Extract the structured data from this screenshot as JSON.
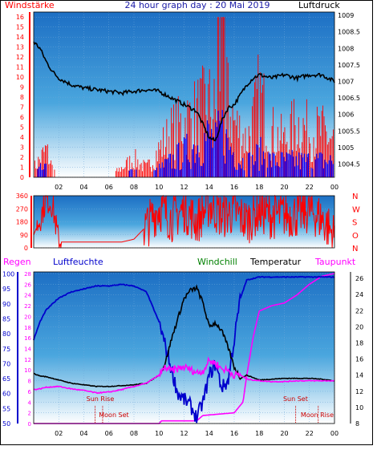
{
  "chart_data": [
    {
      "type": "line",
      "title": "24 hour graph day : 20 Mai 2019",
      "left_label": "Windstärke",
      "right_label": "Luftdruck",
      "x_ticks": [
        "02",
        "04",
        "06",
        "08",
        "10",
        "12",
        "14",
        "16",
        "18",
        "20",
        "22",
        "00"
      ],
      "y_left_ticks": [
        "0",
        "1",
        "2",
        "3",
        "4",
        "5",
        "6",
        "7",
        "8",
        "9",
        "10",
        "11",
        "12",
        "13",
        "14",
        "15",
        "16"
      ],
      "y_right_ticks": [
        "1004.5",
        "1005",
        "1005.5",
        "1006",
        "1006.5",
        "1007",
        "1007.5",
        "1008",
        "1008.5",
        "1009"
      ],
      "ylim_left": [
        0,
        16.5
      ],
      "ylim_right": [
        1004.1,
        1009.1
      ],
      "series": [
        {
          "name": "Luftdruck",
          "axis": "right",
          "color": "#000000",
          "x": [
            0,
            0.5,
            1,
            1.5,
            2,
            3,
            4,
            5,
            6,
            7,
            8,
            9,
            10,
            11,
            12,
            13,
            14,
            14.5,
            15,
            15.5,
            16,
            16.5,
            17,
            17.5,
            18,
            19,
            20,
            21,
            22,
            23,
            24
          ],
          "values": [
            1008.2,
            1008.0,
            1007.6,
            1007.3,
            1007.1,
            1006.9,
            1006.8,
            1006.75,
            1006.7,
            1006.65,
            1006.7,
            1006.75,
            1006.7,
            1006.5,
            1006.3,
            1006.1,
            1005.3,
            1005.2,
            1005.8,
            1006.2,
            1006.3,
            1006.6,
            1006.9,
            1007.1,
            1007.2,
            1007.1,
            1007.2,
            1007.1,
            1007.2,
            1007.2,
            1007.0
          ]
        },
        {
          "name": "Windstärke",
          "axis": "left",
          "color": "#ff0000",
          "x": [
            0,
            0.5,
            1,
            1.5,
            2,
            3,
            4,
            5,
            6,
            7,
            8,
            9,
            10,
            11,
            12,
            13,
            14,
            14.5,
            15,
            15.5,
            16,
            16.5,
            17,
            17.5,
            18,
            19,
            20,
            21,
            22,
            23,
            24
          ],
          "values": [
            1,
            2,
            3,
            1,
            0,
            0,
            0,
            0,
            0,
            1,
            2,
            1,
            3,
            5,
            6,
            7,
            8,
            7,
            12,
            8,
            6,
            5,
            4,
            6,
            9,
            5,
            4,
            6,
            5,
            5,
            4
          ]
        },
        {
          "name": "Windböen",
          "axis": "left",
          "color": "#0000ff",
          "x": [
            0,
            0.5,
            1,
            1.5,
            2,
            3,
            4,
            5,
            6,
            7,
            8,
            9,
            10,
            11,
            12,
            13,
            14,
            14.5,
            15,
            15.5,
            16,
            16.5,
            17,
            17.5,
            18,
            19,
            20,
            21,
            22,
            23,
            24
          ],
          "values": [
            0,
            1,
            1,
            0,
            0,
            0,
            0,
            0,
            0,
            0,
            1,
            0,
            1,
            2,
            3,
            4,
            5,
            4,
            6,
            4,
            3,
            2,
            2,
            2,
            3,
            2,
            2,
            2,
            2,
            2,
            2
          ]
        }
      ]
    },
    {
      "type": "line",
      "right_letters": [
        "N",
        "W",
        "S",
        "O",
        "N"
      ],
      "y_ticks": [
        "0",
        "90",
        "180",
        "270",
        "360"
      ],
      "ylim": [
        0,
        360
      ],
      "series": [
        {
          "name": "Windrichtung",
          "color": "#ff0000",
          "x": [
            0,
            0.5,
            1,
            1.5,
            2,
            3,
            4,
            5,
            6,
            7,
            8,
            9,
            10,
            11,
            12,
            13,
            14,
            15,
            16,
            17,
            18,
            19,
            20,
            21,
            22,
            23,
            24
          ],
          "values": [
            90,
            200,
            340,
            300,
            40,
            40,
            40,
            40,
            40,
            40,
            60,
            150,
            280,
            200,
            270,
            180,
            300,
            220,
            250,
            180,
            260,
            220,
            230,
            230,
            260,
            200,
            80
          ]
        }
      ]
    },
    {
      "type": "line",
      "legend": [
        "Regen",
        "Luftfeuchte",
        "Windchill",
        "Temperatur",
        "Taupunkt"
      ],
      "legend_colors": [
        "#ff00ff",
        "#0000cc",
        "#008000",
        "#000000",
        "#ff00ff"
      ],
      "humidity_ticks": [
        "50",
        "55",
        "60",
        "65",
        "70",
        "75",
        "80",
        "85",
        "90",
        "95",
        "100"
      ],
      "rain_ticks": [
        "0",
        "2",
        "4",
        "6",
        "8",
        "10",
        "12",
        "14",
        "16",
        "18",
        "20",
        "22",
        "24",
        "26",
        "28"
      ],
      "temp_ticks": [
        "8",
        "10",
        "12",
        "14",
        "16",
        "18",
        "20",
        "22",
        "24",
        "26"
      ],
      "x_ticks": [
        "02",
        "04",
        "06",
        "08",
        "10",
        "12",
        "14",
        "16",
        "18",
        "20",
        "22",
        "00"
      ],
      "ylim_humidity": [
        50,
        100.7
      ],
      "ylim_temp": [
        8,
        26.8
      ],
      "annotations": [
        "Sun Rise",
        "Moon Set",
        "Sun Set",
        "Moon Rise"
      ],
      "series": [
        {
          "name": "Luftfeuchte",
          "axis": "humidity",
          "color": "#0000cc",
          "x": [
            0,
            0.5,
            1,
            2,
            3,
            4,
            5,
            6,
            7,
            8,
            9,
            10,
            10.5,
            11,
            11.5,
            12,
            12.5,
            13,
            13.5,
            14,
            14.5,
            15,
            15.5,
            16,
            16.5,
            17,
            18,
            19,
            20,
            21,
            22,
            23,
            24
          ],
          "values": [
            78,
            84,
            88,
            92,
            94,
            95,
            96,
            96,
            96.5,
            96,
            94,
            84,
            76,
            68,
            60,
            58,
            56,
            52,
            57,
            66,
            70,
            62,
            64,
            78,
            92,
            98,
            99,
            99,
            99,
            99,
            99,
            99,
            99
          ]
        },
        {
          "name": "Temperatur",
          "axis": "temp",
          "color": "#000000",
          "x": [
            0,
            0.5,
            1,
            2,
            3,
            4,
            5,
            6,
            7,
            8,
            9,
            10,
            10.5,
            11,
            11.5,
            12,
            12.5,
            13,
            13.5,
            14,
            14.5,
            15,
            15.5,
            16,
            16.5,
            17,
            18,
            19,
            20,
            21,
            22,
            23,
            24
          ],
          "values": [
            14.2,
            13.9,
            13.8,
            13.4,
            13.0,
            12.8,
            12.6,
            12.6,
            12.7,
            12.8,
            13.0,
            14.0,
            15.5,
            18.5,
            21.0,
            23.5,
            24.5,
            24.8,
            23.0,
            20.0,
            20.5,
            19.5,
            17.5,
            15.0,
            13.6,
            14.0,
            13.4,
            13.5,
            13.6,
            13.6,
            13.6,
            13.5,
            13.3
          ]
        },
        {
          "name": "Taupunkt",
          "axis": "temp",
          "color": "#ff00ff",
          "x": [
            0,
            0.5,
            1,
            2,
            3,
            4,
            5,
            6,
            7,
            8,
            9,
            10,
            10.5,
            11,
            11.5,
            12,
            12.5,
            13,
            13.5,
            14,
            14.5,
            15,
            15.5,
            16,
            16.5,
            17,
            18,
            19,
            20,
            21,
            22,
            23,
            24
          ],
          "values": [
            12.2,
            12.3,
            12.5,
            12.6,
            12.3,
            12.1,
            11.8,
            11.9,
            12.2,
            12.6,
            13.0,
            14.0,
            15.0,
            14.5,
            14.8,
            15.0,
            14.7,
            14.3,
            14.5,
            15.8,
            15.5,
            14.8,
            14.6,
            14.0,
            14.0,
            13.5,
            13.3,
            13.2,
            13.2,
            13.3,
            13.3,
            13.3,
            13.3
          ]
        },
        {
          "name": "Regen",
          "axis": "rain",
          "color": "#ff00ff",
          "x": [
            0,
            10,
            10.2,
            13,
            13.5,
            16,
            16.7,
            17,
            17.5,
            18,
            19,
            20,
            21,
            22,
            23,
            24
          ],
          "values": [
            0,
            0,
            0.5,
            0.5,
            1.5,
            2,
            4,
            9,
            16,
            21,
            22,
            22.5,
            24,
            26,
            27.5,
            28
          ]
        }
      ]
    }
  ]
}
